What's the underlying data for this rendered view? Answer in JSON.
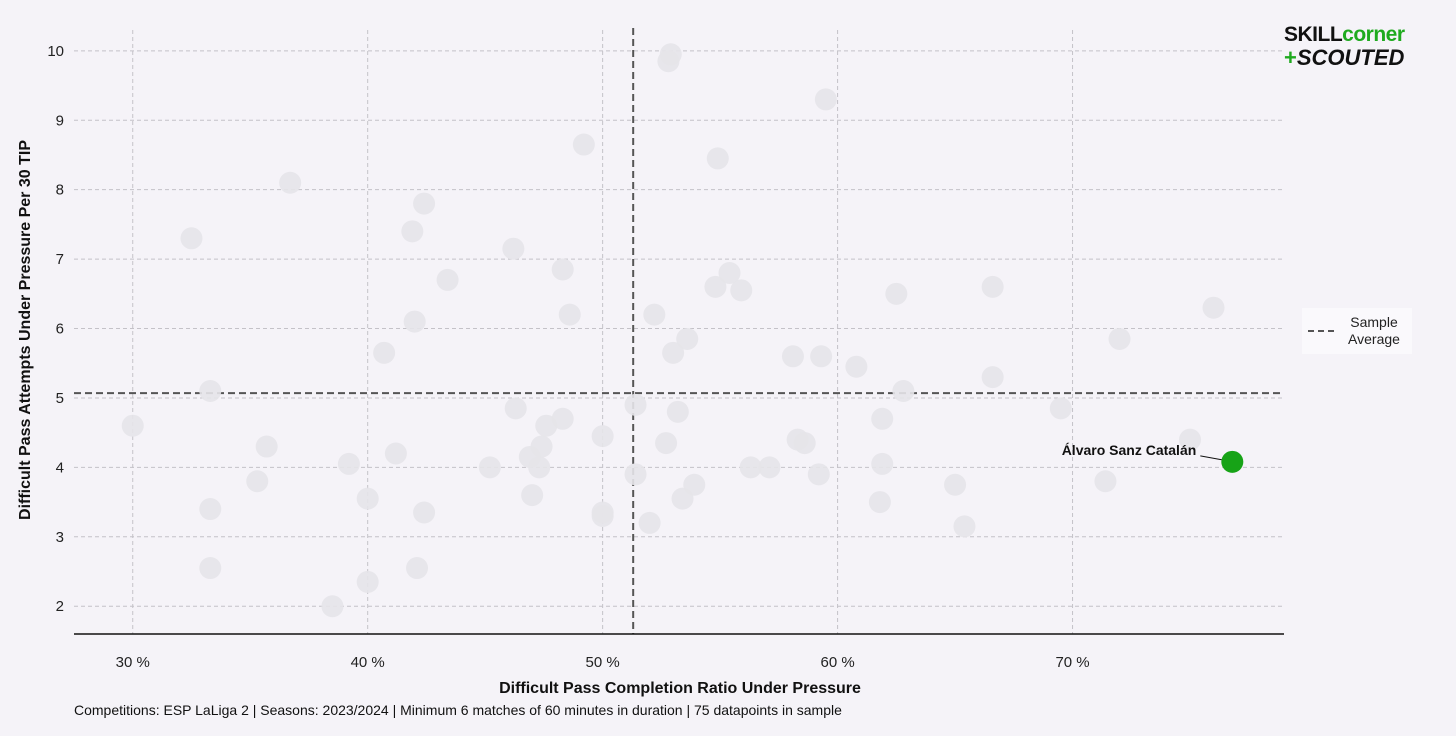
{
  "logo": {
    "line1_a": "SKILL",
    "line1_b": "corner",
    "line2_plus": "+",
    "line2_text": "SCOUTED"
  },
  "legend": {
    "label": "Sample Average"
  },
  "footer": {
    "text": "Competitions: ESP LaLiga 2 | Seasons: 2023/2024 | Minimum 6 matches of 60 minutes in duration | 75 datapoints in sample"
  },
  "colors": {
    "highlight": "#17a317",
    "points": "#e6e4e9",
    "average_line": "#555555",
    "grid": "#c4c2c8"
  },
  "chart_data": {
    "type": "scatter",
    "xlabel": "Difficult Pass Completion Ratio Under Pressure",
    "ylabel": "Difficult Pass Attempts Under Pressure Per 30 TIP",
    "xlim": [
      27.5,
      79
    ],
    "ylim": [
      1.6,
      10.3
    ],
    "x_ticks": [
      30,
      40,
      50,
      60,
      70
    ],
    "x_tick_labels": [
      "30 %",
      "40 %",
      "50 %",
      "60 %",
      "70 %"
    ],
    "y_ticks": [
      2,
      3,
      4,
      5,
      6,
      7,
      8,
      9,
      10
    ],
    "y_tick_labels": [
      "2",
      "3",
      "4",
      "5",
      "6",
      "7",
      "8",
      "9",
      "10"
    ],
    "grid": true,
    "legend_position": "right",
    "averages": {
      "x": 51.3,
      "y": 5.07
    },
    "points": [
      {
        "x": 30.0,
        "y": 4.6
      },
      {
        "x": 32.5,
        "y": 7.3
      },
      {
        "x": 33.3,
        "y": 5.1
      },
      {
        "x": 33.3,
        "y": 3.4
      },
      {
        "x": 33.3,
        "y": 2.55
      },
      {
        "x": 35.3,
        "y": 3.8
      },
      {
        "x": 35.7,
        "y": 4.3
      },
      {
        "x": 36.7,
        "y": 8.1
      },
      {
        "x": 38.5,
        "y": 2.0
      },
      {
        "x": 39.2,
        "y": 4.05
      },
      {
        "x": 40.0,
        "y": 3.55
      },
      {
        "x": 40.0,
        "y": 2.35
      },
      {
        "x": 40.7,
        "y": 5.65
      },
      {
        "x": 41.2,
        "y": 4.2
      },
      {
        "x": 41.9,
        "y": 7.4
      },
      {
        "x": 42.0,
        "y": 6.1
      },
      {
        "x": 42.1,
        "y": 2.55
      },
      {
        "x": 42.4,
        "y": 7.8
      },
      {
        "x": 42.4,
        "y": 3.35
      },
      {
        "x": 43.4,
        "y": 6.7
      },
      {
        "x": 45.2,
        "y": 4.0
      },
      {
        "x": 46.2,
        "y": 7.15
      },
      {
        "x": 46.3,
        "y": 4.85
      },
      {
        "x": 46.9,
        "y": 4.15
      },
      {
        "x": 47.0,
        "y": 3.6
      },
      {
        "x": 47.3,
        "y": 4.0
      },
      {
        "x": 47.4,
        "y": 4.3
      },
      {
        "x": 47.6,
        "y": 4.6
      },
      {
        "x": 48.3,
        "y": 4.7
      },
      {
        "x": 48.3,
        "y": 6.85
      },
      {
        "x": 48.6,
        "y": 6.2
      },
      {
        "x": 49.2,
        "y": 8.65
      },
      {
        "x": 50.0,
        "y": 4.45
      },
      {
        "x": 50.0,
        "y": 3.35
      },
      {
        "x": 50.0,
        "y": 3.3
      },
      {
        "x": 51.4,
        "y": 4.9
      },
      {
        "x": 51.4,
        "y": 3.9
      },
      {
        "x": 52.0,
        "y": 3.2
      },
      {
        "x": 52.2,
        "y": 6.2
      },
      {
        "x": 52.7,
        "y": 4.35
      },
      {
        "x": 52.8,
        "y": 9.85
      },
      {
        "x": 52.9,
        "y": 9.95
      },
      {
        "x": 53.0,
        "y": 5.65
      },
      {
        "x": 53.2,
        "y": 4.8
      },
      {
        "x": 53.4,
        "y": 3.55
      },
      {
        "x": 53.6,
        "y": 5.85
      },
      {
        "x": 53.9,
        "y": 3.75
      },
      {
        "x": 54.8,
        "y": 6.6
      },
      {
        "x": 54.9,
        "y": 8.45
      },
      {
        "x": 55.4,
        "y": 6.8
      },
      {
        "x": 55.9,
        "y": 6.55
      },
      {
        "x": 56.3,
        "y": 4.0
      },
      {
        "x": 57.1,
        "y": 4.0
      },
      {
        "x": 58.1,
        "y": 5.6
      },
      {
        "x": 58.3,
        "y": 4.4
      },
      {
        "x": 58.6,
        "y": 4.35
      },
      {
        "x": 59.2,
        "y": 3.9
      },
      {
        "x": 59.3,
        "y": 5.6
      },
      {
        "x": 59.5,
        "y": 9.3
      },
      {
        "x": 60.8,
        "y": 5.45
      },
      {
        "x": 61.8,
        "y": 3.5
      },
      {
        "x": 61.9,
        "y": 4.05
      },
      {
        "x": 61.9,
        "y": 4.7
      },
      {
        "x": 62.5,
        "y": 6.5
      },
      {
        "x": 62.8,
        "y": 5.1
      },
      {
        "x": 65.0,
        "y": 3.75
      },
      {
        "x": 65.4,
        "y": 3.15
      },
      {
        "x": 66.6,
        "y": 5.3
      },
      {
        "x": 66.6,
        "y": 6.6
      },
      {
        "x": 69.5,
        "y": 4.85
      },
      {
        "x": 71.4,
        "y": 3.8
      },
      {
        "x": 72.0,
        "y": 5.85
      },
      {
        "x": 75.0,
        "y": 4.4
      },
      {
        "x": 76.0,
        "y": 6.3
      }
    ],
    "highlight": {
      "label": "Álvaro Sanz Catalán",
      "x": 76.8,
      "y": 4.08
    }
  }
}
